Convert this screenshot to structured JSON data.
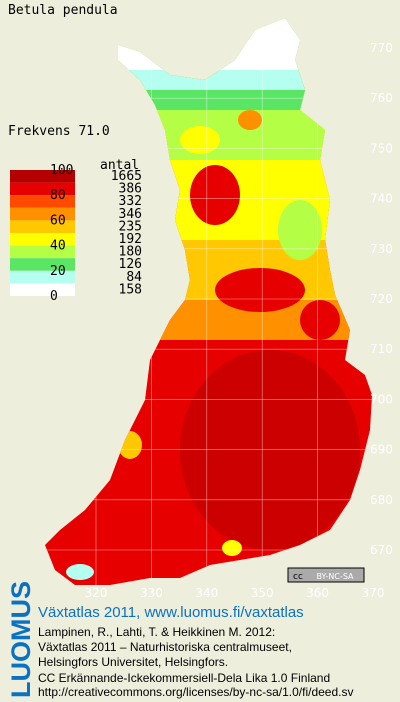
{
  "title": "Betula pendula",
  "frequency": "Frekvens 71.0",
  "legend": {
    "header": "antal",
    "scale_labels": [
      "100",
      "80",
      "60",
      "40",
      "20",
      "0"
    ],
    "bins": [
      {
        "color": "#b40000",
        "count": "1665"
      },
      {
        "color": "#e60000",
        "count": "386"
      },
      {
        "color": "#ff4a00",
        "count": "332"
      },
      {
        "color": "#ff9000",
        "count": "346"
      },
      {
        "color": "#ffc800",
        "count": "235"
      },
      {
        "color": "#ffff00",
        "count": "192"
      },
      {
        "color": "#b4ff46",
        "count": "180"
      },
      {
        "color": "#5ae664",
        "count": "126"
      },
      {
        "color": "#b4fff0",
        "count": "84"
      },
      {
        "color": "#ffffff",
        "count": "158"
      }
    ]
  },
  "grid": {
    "north": [
      "770",
      "760",
      "750",
      "740",
      "730",
      "720",
      "710",
      "700",
      "690",
      "680",
      "670"
    ],
    "east": [
      "320",
      "330",
      "340",
      "350",
      "360",
      "370"
    ]
  },
  "license_badge": {
    "cc": "cc",
    "label": "BY-NC-SA"
  },
  "footer": {
    "logo": "LUOMUS",
    "link": "Växtatlas 2011, www.luomus.fi/vaxtatlas",
    "citation": [
      "Lampinen, R., Lahti, T. & Heikkinen M. 2012:",
      "Växtatlas 2011 – Naturhistoriska centralmuseet,",
      "Helsingfors Universitet, Helsingfors."
    ],
    "license": [
      "CC Erkännande-Icke­kommersiell-Dela Lika 1.0 Finland",
      "http://creativecommons.org/licenses/by-nc-sa/1.0/fi/deed.sv"
    ]
  }
}
